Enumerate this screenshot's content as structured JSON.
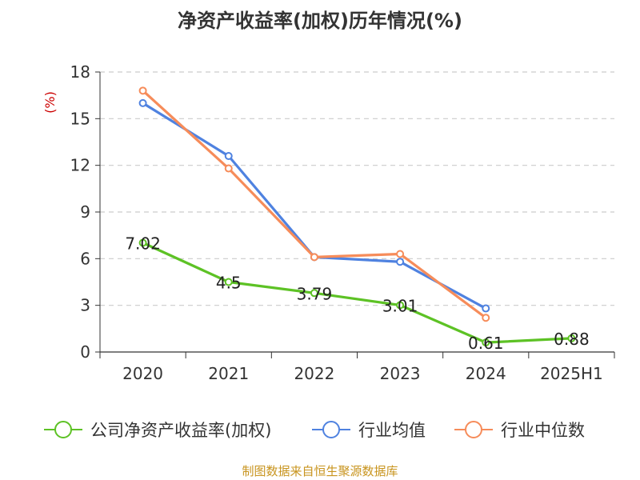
{
  "title": "净资产收益率(加权)历年情况(%)",
  "source_note": "制图数据来自恒生聚源数据库",
  "colors": {
    "company": "#5dc225",
    "industry_avg": "#4f82e0",
    "industry_median": "#f68c5a",
    "ylabel": "#cc0000",
    "grid": "#cccccc",
    "axis": "#333333",
    "source": "#c8941e"
  },
  "chart_data": {
    "type": "line",
    "title": "净资产收益率(加权)历年情况(%)",
    "ylabel": "(%)",
    "xlabel": "",
    "categories": [
      "2020",
      "2021",
      "2022",
      "2023",
      "2024",
      "2025H1"
    ],
    "yticks": [
      0,
      3,
      6,
      9,
      12,
      15,
      18
    ],
    "ylim": [
      0,
      18
    ],
    "grid": true,
    "legend_position": "bottom",
    "series": [
      {
        "name": "公司净资产收益率(加权)",
        "color_key": "company",
        "show_labels": true,
        "values": [
          7.02,
          4.5,
          3.79,
          3.01,
          0.61,
          0.88
        ],
        "labels": [
          "7.02",
          "4.5",
          "3.79",
          "3.01",
          "0.61",
          "0.88"
        ]
      },
      {
        "name": "行业均值",
        "color_key": "industry_avg",
        "show_labels": false,
        "values": [
          16.0,
          12.6,
          6.1,
          5.8,
          2.8,
          null
        ]
      },
      {
        "name": "行业中位数",
        "color_key": "industry_median",
        "show_labels": false,
        "values": [
          16.8,
          11.8,
          6.1,
          6.3,
          2.2,
          null
        ]
      }
    ]
  }
}
